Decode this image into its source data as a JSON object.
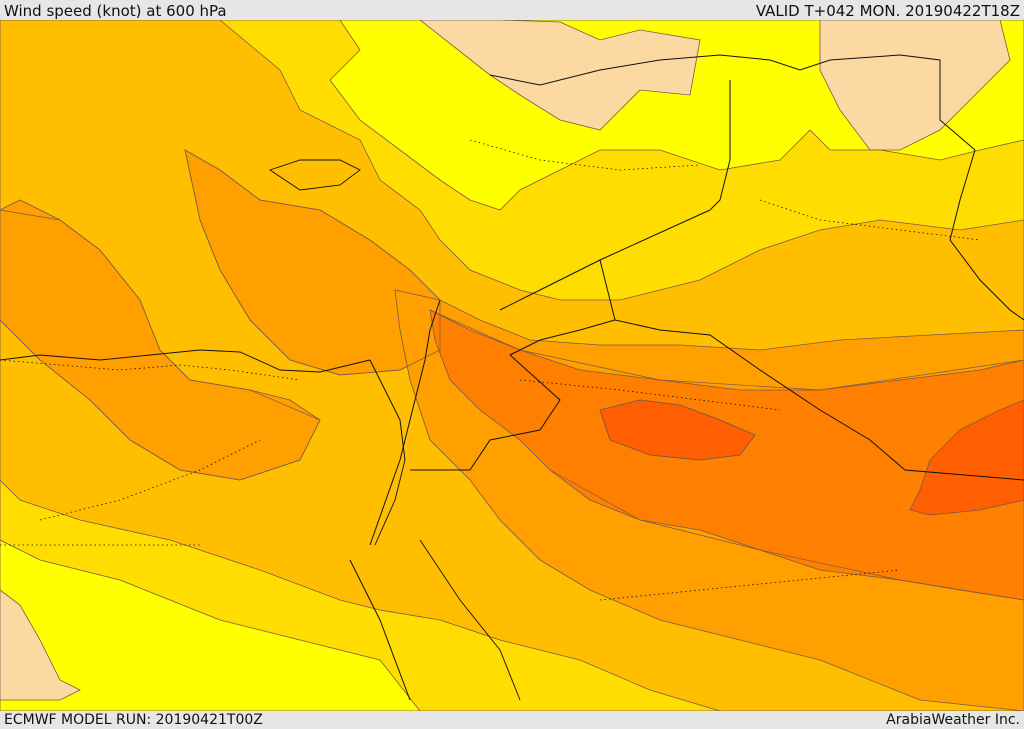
{
  "header": {
    "title": "Wind speed (knot) at 600 hPa",
    "valid": "VALID T+042 MON. 20190422T18Z"
  },
  "footer": {
    "model_run": "ECMWF MODEL RUN: 20190421T00Z",
    "credit": "ArabiaWeather Inc."
  },
  "palette": {
    "land_outside": "#fcd9a3",
    "level_1": "#ffff00",
    "level_2": "#ffdd00",
    "level_3": "#ffbf00",
    "level_4": "#ff9f00",
    "level_5": "#ff7f00",
    "level_6": "#ff5f00",
    "contour_line": "#7a5a4a",
    "border_line": "#111111"
  }
}
